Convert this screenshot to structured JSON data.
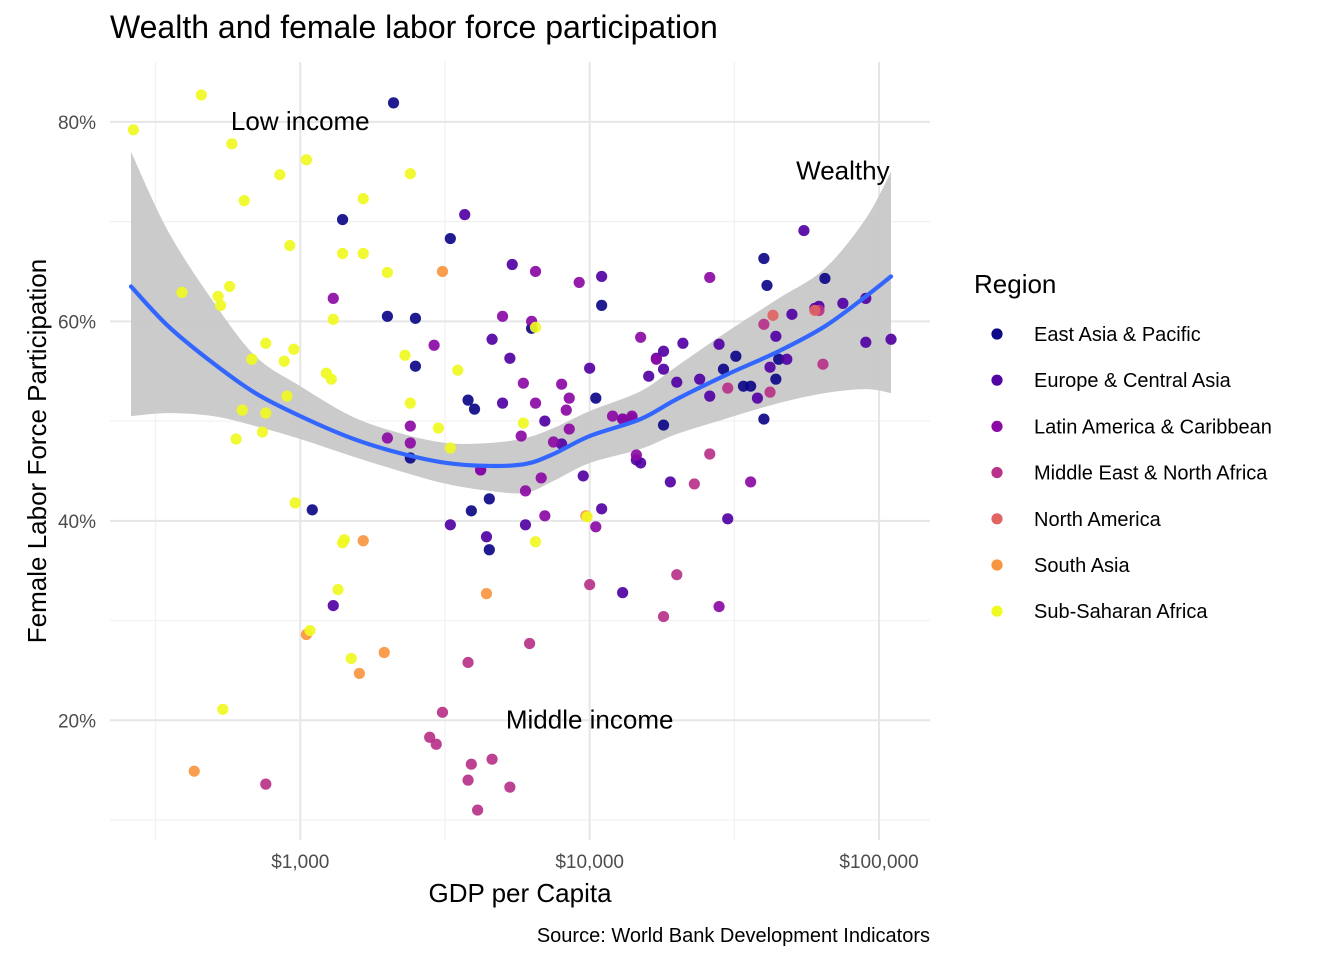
{
  "chart_data": {
    "type": "scatter",
    "title": "Wealth and female labor force participation",
    "xlabel": "GDP per Capita",
    "ylabel": "Female Labor Force Participation",
    "caption": "Source: World Bank Development Indicators",
    "x_scale": "log10",
    "xlim": [
      220,
      150000
    ],
    "ylim": [
      8,
      86
    ],
    "x_ticks": [
      {
        "value": 1000,
        "label": "$1,000"
      },
      {
        "value": 10000,
        "label": "$10,000"
      },
      {
        "value": 100000,
        "label": "$100,000"
      }
    ],
    "y_ticks": [
      {
        "value": 20,
        "label": "20%"
      },
      {
        "value": 40,
        "label": "40%"
      },
      {
        "value": 60,
        "label": "60%"
      },
      {
        "value": 80,
        "label": "80%"
      }
    ],
    "grid": true,
    "legend": {
      "title": "Region",
      "position": "right",
      "entries": [
        {
          "name": "East Asia & Pacific",
          "color": "#0d0887"
        },
        {
          "name": "Europe & Central Asia",
          "color": "#5302a3"
        },
        {
          "name": "Latin America & Caribbean",
          "color": "#8b0aa5"
        },
        {
          "name": "Middle East & North Africa",
          "color": "#b83289"
        },
        {
          "name": "North America",
          "color": "#e16462"
        },
        {
          "name": "South Asia",
          "color": "#f89540"
        },
        {
          "name": "Sub-Saharan Africa",
          "color": "#f0f921"
        }
      ]
    },
    "annotations": [
      {
        "text": "Low income",
        "x": 1000,
        "y": 80.1
      },
      {
        "text": "Middle income",
        "x": 10000,
        "y": 20.1
      },
      {
        "text": "Wealthy",
        "x": 75000,
        "y": 75.1
      }
    ],
    "smooth": {
      "color": "#3366ff",
      "band_color": "#c8c8c8",
      "x": [
        260,
        350,
        500,
        700,
        1000,
        1500,
        2200,
        3200,
        4500,
        6000,
        7500,
        10000,
        15000,
        20000,
        30000,
        45000,
        65000,
        90000,
        110000
      ],
      "y": [
        63.5,
        59.5,
        55.8,
        52.8,
        50.5,
        48.3,
        46.8,
        45.8,
        45.5,
        45.7,
        46.7,
        48.5,
        50.2,
        52.2,
        54.7,
        57.0,
        59.5,
        62.5,
        64.5
      ],
      "ymin": [
        50.5,
        50.8,
        50.5,
        49.5,
        48.2,
        46.5,
        45.0,
        43.7,
        43.0,
        42.8,
        44.0,
        45.8,
        47.2,
        48.7,
        50.3,
        51.8,
        52.8,
        53.2,
        52.8
      ],
      "ymax": [
        77.0,
        69.0,
        62.0,
        56.5,
        53.5,
        50.5,
        48.8,
        47.8,
        47.8,
        48.3,
        49.3,
        51.0,
        53.0,
        55.5,
        59.0,
        62.3,
        65.3,
        70.3,
        75.0
      ]
    },
    "series": [
      {
        "name": "East Asia & Pacific",
        "points": [
          [
            2100,
            81.9
          ],
          [
            1400,
            70.2
          ],
          [
            3300,
            68.3
          ],
          [
            1100,
            41.1
          ],
          [
            2000,
            60.5
          ],
          [
            2500,
            60.3
          ],
          [
            2500,
            55.5
          ],
          [
            3800,
            52.1
          ],
          [
            4000,
            51.2
          ],
          [
            3900,
            41.0
          ],
          [
            4500,
            42.2
          ],
          [
            4500,
            37.1
          ],
          [
            6300,
            59.3
          ],
          [
            11000,
            61.6
          ],
          [
            10500,
            52.3
          ],
          [
            40000,
            66.3
          ],
          [
            41000,
            63.6
          ],
          [
            40000,
            50.2
          ],
          [
            32000,
            56.5
          ],
          [
            34000,
            53.5
          ],
          [
            36000,
            53.5
          ],
          [
            44000,
            54.2
          ],
          [
            65000,
            64.3
          ],
          [
            45000,
            56.2
          ],
          [
            18000,
            49.6
          ],
          [
            2400,
            46.3
          ],
          [
            29000,
            55.2
          ]
        ]
      },
      {
        "name": "Europe & Central Asia",
        "points": [
          [
            3700,
            70.7
          ],
          [
            5400,
            65.7
          ],
          [
            11000,
            64.5
          ],
          [
            4600,
            58.2
          ],
          [
            5300,
            56.3
          ],
          [
            10000,
            55.3
          ],
          [
            18000,
            57.0
          ],
          [
            21000,
            57.8
          ],
          [
            16000,
            54.5
          ],
          [
            14000,
            50.3
          ],
          [
            13000,
            50.2
          ],
          [
            14500,
            46.1
          ],
          [
            15000,
            45.8
          ],
          [
            20000,
            53.9
          ],
          [
            24000,
            54.2
          ],
          [
            26000,
            52.5
          ],
          [
            28000,
            57.7
          ],
          [
            30000,
            40.2
          ],
          [
            38000,
            52.3
          ],
          [
            42000,
            55.4
          ],
          [
            44000,
            58.5
          ],
          [
            50000,
            60.7
          ],
          [
            55000,
            69.1
          ],
          [
            60000,
            61.3
          ],
          [
            62000,
            61.5
          ],
          [
            90000,
            62.3
          ],
          [
            90000,
            57.9
          ],
          [
            110000,
            58.2
          ],
          [
            75000,
            61.8
          ],
          [
            48000,
            56.2
          ],
          [
            19000,
            43.9
          ],
          [
            13000,
            32.8
          ],
          [
            11000,
            41.2
          ],
          [
            6000,
            39.6
          ],
          [
            3300,
            39.6
          ],
          [
            1300,
            31.5
          ],
          [
            5000,
            51.8
          ],
          [
            7000,
            50.0
          ],
          [
            4200,
            45.1
          ],
          [
            4400,
            38.4
          ],
          [
            8000,
            47.7
          ],
          [
            17000,
            56.3
          ],
          [
            9500,
            44.5
          ],
          [
            18000,
            55.2
          ]
        ]
      },
      {
        "name": "Latin America & Caribbean",
        "points": [
          [
            1300,
            62.3
          ],
          [
            2900,
            57.6
          ],
          [
            5000,
            60.5
          ],
          [
            6500,
            65.0
          ],
          [
            6300,
            60.0
          ],
          [
            9200,
            63.9
          ],
          [
            26000,
            64.4
          ],
          [
            15000,
            58.4
          ],
          [
            12000,
            50.5
          ],
          [
            8000,
            53.7
          ],
          [
            8500,
            52.3
          ],
          [
            8300,
            51.1
          ],
          [
            6500,
            51.8
          ],
          [
            5900,
            53.8
          ],
          [
            5800,
            48.5
          ],
          [
            7500,
            47.9
          ],
          [
            8500,
            49.2
          ],
          [
            13000,
            50.2
          ],
          [
            14000,
            50.5
          ],
          [
            14500,
            46.6
          ],
          [
            17000,
            56.2
          ],
          [
            6000,
            43.0
          ],
          [
            7000,
            40.5
          ],
          [
            10500,
            39.4
          ],
          [
            6800,
            44.3
          ],
          [
            2000,
            48.3
          ],
          [
            2400,
            47.8
          ],
          [
            2400,
            49.5
          ],
          [
            28000,
            31.4
          ],
          [
            36000,
            43.9
          ],
          [
            4200,
            45.1
          ]
        ]
      },
      {
        "name": "Middle East & North Africa",
        "points": [
          [
            760,
            13.6
          ],
          [
            3100,
            20.8
          ],
          [
            2800,
            18.3
          ],
          [
            2950,
            17.6
          ],
          [
            3900,
            15.6
          ],
          [
            4600,
            16.1
          ],
          [
            3800,
            14.0
          ],
          [
            4100,
            11.0
          ],
          [
            5300,
            13.3
          ],
          [
            3800,
            25.8
          ],
          [
            6200,
            27.7
          ],
          [
            10000,
            33.6
          ],
          [
            20000,
            34.6
          ],
          [
            18000,
            30.4
          ],
          [
            23000,
            43.7
          ],
          [
            26000,
            46.7
          ],
          [
            30000,
            53.3
          ],
          [
            40000,
            59.7
          ],
          [
            42000,
            52.9
          ],
          [
            64000,
            55.7
          ],
          [
            62000,
            61.1
          ]
        ]
      },
      {
        "name": "North America",
        "points": [
          [
            43000,
            60.6
          ],
          [
            60000,
            61.1
          ]
        ]
      },
      {
        "name": "South Asia",
        "points": [
          [
            430,
            14.9
          ],
          [
            1050,
            28.6
          ],
          [
            1600,
            24.7
          ],
          [
            1650,
            38.0
          ],
          [
            1950,
            26.8
          ],
          [
            3100,
            65.0
          ],
          [
            4400,
            32.7
          ],
          [
            9700,
            40.5
          ]
        ]
      },
      {
        "name": "Sub-Saharan Africa",
        "points": [
          [
            265,
            79.2
          ],
          [
            455,
            82.7
          ],
          [
            580,
            77.8
          ],
          [
            850,
            74.7
          ],
          [
            1050,
            76.2
          ],
          [
            1650,
            72.3
          ],
          [
            2400,
            74.8
          ],
          [
            640,
            72.1
          ],
          [
            920,
            67.6
          ],
          [
            1400,
            66.8
          ],
          [
            1650,
            66.8
          ],
          [
            2000,
            64.9
          ],
          [
            570,
            63.5
          ],
          [
            520,
            62.5
          ],
          [
            530,
            61.6
          ],
          [
            390,
            62.9
          ],
          [
            1300,
            60.2
          ],
          [
            760,
            57.8
          ],
          [
            680,
            56.2
          ],
          [
            880,
            56.0
          ],
          [
            950,
            57.2
          ],
          [
            2300,
            56.6
          ],
          [
            3500,
            55.1
          ],
          [
            1230,
            54.8
          ],
          [
            1280,
            54.2
          ],
          [
            900,
            52.5
          ],
          [
            630,
            51.1
          ],
          [
            760,
            50.8
          ],
          [
            2400,
            51.8
          ],
          [
            740,
            48.9
          ],
          [
            600,
            48.2
          ],
          [
            3000,
            49.3
          ],
          [
            3300,
            47.3
          ],
          [
            5900,
            49.8
          ],
          [
            960,
            41.8
          ],
          [
            1420,
            38.1
          ],
          [
            1400,
            37.8
          ],
          [
            1350,
            33.1
          ],
          [
            1080,
            29.0
          ],
          [
            1500,
            26.2
          ],
          [
            540,
            21.1
          ],
          [
            6500,
            37.9
          ],
          [
            9800,
            40.4
          ],
          [
            6500,
            59.4
          ]
        ]
      }
    ]
  }
}
